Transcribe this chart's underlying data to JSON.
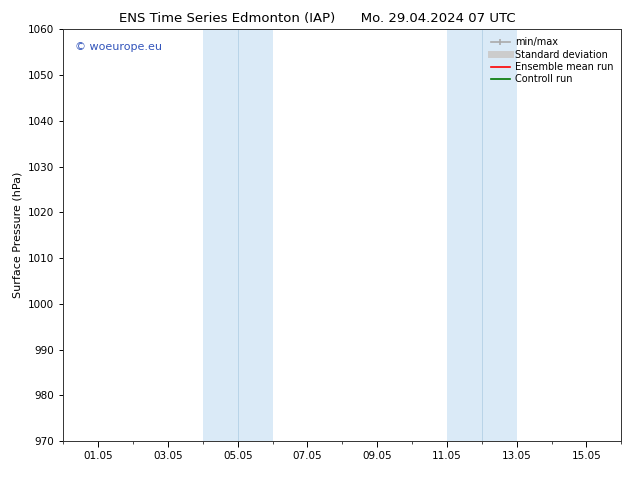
{
  "title_left": "ENS Time Series Edmonton (IAP)",
  "title_right": "Mo. 29.04.2024 07 UTC",
  "ylabel": "Surface Pressure (hPa)",
  "xlim": [
    0,
    16
  ],
  "ylim": [
    970,
    1060
  ],
  "yticks": [
    970,
    980,
    990,
    1000,
    1010,
    1020,
    1030,
    1040,
    1050,
    1060
  ],
  "xtick_positions": [
    1,
    3,
    5,
    7,
    9,
    11,
    13,
    15
  ],
  "xtick_labels": [
    "01.05",
    "03.05",
    "05.05",
    "07.05",
    "09.05",
    "11.05",
    "13.05",
    "15.05"
  ],
  "minor_xtick_positions": [
    0,
    2,
    4,
    6,
    8,
    10,
    12,
    14,
    16
  ],
  "shaded_bands": [
    {
      "xmin": 4.0,
      "xmax": 6.0,
      "color": "#daeaf7"
    },
    {
      "xmin": 11.0,
      "xmax": 13.0,
      "color": "#daeaf7"
    }
  ],
  "shaded_band_inner_lines": [
    {
      "x": 5.0
    },
    {
      "x": 12.0
    }
  ],
  "watermark_text": "© woeurope.eu",
  "watermark_color": "#3355bb",
  "watermark_fontsize": 8,
  "legend_entries": [
    {
      "label": "min/max",
      "color": "#aaaaaa",
      "linestyle": "-",
      "linewidth": 1.2
    },
    {
      "label": "Standard deviation",
      "color": "#cccccc",
      "linestyle": "-",
      "linewidth": 5
    },
    {
      "label": "Ensemble mean run",
      "color": "#ff0000",
      "linestyle": "-",
      "linewidth": 1.2
    },
    {
      "label": "Controll run",
      "color": "#007700",
      "linestyle": "-",
      "linewidth": 1.2
    }
  ],
  "background_color": "#ffffff",
  "title_fontsize": 9.5,
  "axis_label_fontsize": 8,
  "tick_fontsize": 7.5,
  "legend_fontsize": 7
}
